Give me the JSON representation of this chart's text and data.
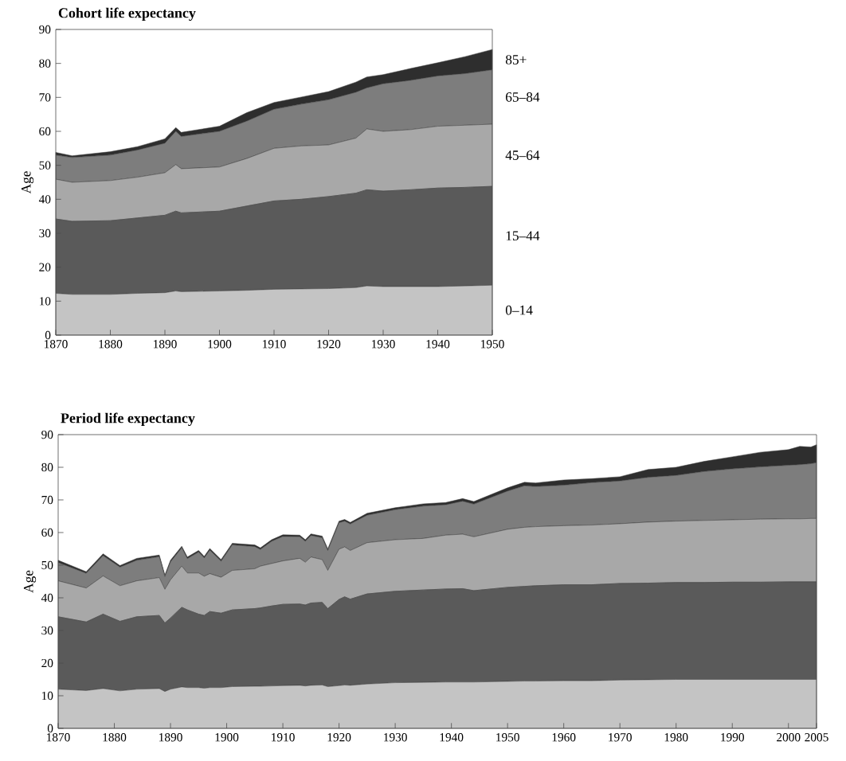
{
  "chart_data": [
    {
      "type": "area",
      "title": "Cohort life expectancy",
      "ylabel": "Age",
      "stacked": true,
      "x": [
        1870,
        1873,
        1880,
        1885,
        1890,
        1892,
        1893,
        1900,
        1905,
        1910,
        1915,
        1920,
        1925,
        1927,
        1930,
        1935,
        1940,
        1945,
        1950
      ],
      "xlim": [
        1870,
        1950
      ],
      "xticks": [
        1870,
        1880,
        1890,
        1900,
        1910,
        1920,
        1930,
        1940,
        1950
      ],
      "ylim": [
        0,
        90
      ],
      "yticks": [
        0,
        10,
        20,
        30,
        40,
        50,
        60,
        70,
        80,
        90
      ],
      "series": [
        {
          "name": "0–14",
          "color": "#c4c4c4",
          "values": [
            12.3,
            12,
            12,
            12.3,
            12.5,
            13,
            12.8,
            13,
            13.2,
            13.5,
            13.6,
            13.7,
            14,
            14.5,
            14.3,
            14.3,
            14.3,
            14.5,
            14.7
          ]
        },
        {
          "name": "15–44",
          "color": "#5a5a5a",
          "values": [
            21.9,
            21.5,
            21.7,
            22.2,
            22.8,
            23.5,
            23.2,
            23.5,
            24.8,
            26,
            26.4,
            27.1,
            27.8,
            28.3,
            28.1,
            28.5,
            29,
            29,
            29.1
          ]
        },
        {
          "name": "45–64",
          "color": "#a8a8a8",
          "values": [
            11.7,
            11.5,
            11.8,
            12,
            12.5,
            13.7,
            13,
            13,
            14,
            15.5,
            15.7,
            15.2,
            16.2,
            17.9,
            17.6,
            17.7,
            18.2,
            18.3,
            18.3
          ]
        },
        {
          "name": "65–84",
          "color": "#7d7d7d",
          "values": [
            7.1,
            7.3,
            7.5,
            8,
            8.7,
            9.8,
            9.5,
            10.5,
            11,
            11.5,
            12.3,
            13.3,
            13.5,
            12.1,
            14,
            14.5,
            14.8,
            15.2,
            16
          ]
        },
        {
          "name": "85+",
          "color": "#2e2e2e",
          "values": [
            0.8,
            0.5,
            1,
            1,
            1.3,
            1.1,
            1.2,
            1.5,
            2.5,
            2,
            2.1,
            2.4,
            3,
            3.2,
            2.7,
            3.5,
            3.9,
            5,
            6
          ]
        }
      ]
    },
    {
      "type": "area",
      "title": "Period life expectancy",
      "ylabel": "Age",
      "stacked": true,
      "x": [
        1870,
        1875,
        1878,
        1881,
        1884,
        1888,
        1889,
        1890,
        1892,
        1893,
        1895,
        1896,
        1897,
        1899,
        1901,
        1905,
        1906,
        1908,
        1910,
        1913,
        1914,
        1915,
        1917,
        1918,
        1920,
        1921,
        1922,
        1925,
        1930,
        1935,
        1939,
        1942,
        1944,
        1950,
        1953,
        1955,
        1960,
        1965,
        1970,
        1975,
        1980,
        1985,
        1990,
        1995,
        2000,
        2002,
        2004,
        2005
      ],
      "xlim": [
        1870,
        2005
      ],
      "xticks": [
        1870,
        1880,
        1890,
        1900,
        1910,
        1920,
        1930,
        1940,
        1950,
        1960,
        1970,
        1980,
        1990,
        2000,
        2005
      ],
      "ylim": [
        0,
        90
      ],
      "yticks": [
        0,
        10,
        20,
        30,
        40,
        50,
        60,
        70,
        80,
        90
      ],
      "series": [
        {
          "color": "#c4c4c4",
          "values": [
            12,
            11.6,
            12.2,
            11.5,
            12,
            12.2,
            11.3,
            12,
            12.7,
            12.5,
            12.5,
            12.3,
            12.5,
            12.5,
            12.8,
            12.9,
            12.9,
            13,
            13.1,
            13.2,
            13,
            13.2,
            13.3,
            12.8,
            13.1,
            13.3,
            13.2,
            13.6,
            14,
            14.1,
            14.2,
            14.2,
            14.2,
            14.4,
            14.5,
            14.5,
            14.6,
            14.6,
            14.8,
            14.9,
            15,
            15,
            15,
            15,
            15,
            15,
            15,
            15
          ]
        },
        {
          "color": "#5a5a5a",
          "values": [
            22.2,
            21,
            22.8,
            21.3,
            22.2,
            22.4,
            21,
            21.8,
            24.4,
            23.8,
            22.5,
            22.3,
            23.3,
            22.8,
            23.5,
            23.8,
            24,
            24.5,
            24.9,
            24.9,
            24.8,
            25.2,
            25.3,
            23.9,
            26.4,
            27,
            26.4,
            27.6,
            28,
            28.3,
            28.5,
            28.6,
            28,
            28.8,
            29,
            29.2,
            29.4,
            29.4,
            29.6,
            29.6,
            29.7,
            29.7,
            29.8,
            29.8,
            29.9,
            29.9,
            29.9,
            29.9
          ]
        },
        {
          "color": "#a8a8a8",
          "values": [
            11,
            10.4,
            11.7,
            10.9,
            11,
            11.6,
            10.3,
            11.7,
            12.6,
            11.3,
            12.6,
            12,
            11.6,
            11,
            12.1,
            12.2,
            12.8,
            13,
            13.3,
            14,
            13.1,
            14.1,
            13.1,
            11.7,
            15.4,
            15.3,
            14.9,
            15.7,
            15.8,
            15.8,
            16.5,
            16.7,
            16.5,
            17.8,
            18.1,
            18.1,
            18.1,
            18.3,
            18.3,
            18.7,
            18.8,
            19,
            19.1,
            19.3,
            19.3,
            19.3,
            19.4,
            19.4
          ]
        },
        {
          "color": "#7d7d7d",
          "values": [
            5.6,
            4.5,
            6.2,
            5.7,
            6.3,
            6.4,
            3.9,
            5.5,
            5.6,
            4.4,
            6.4,
            5.6,
            7.2,
            4.9,
            7.8,
            6.8,
            5.1,
            6.8,
            7.5,
            6.6,
            6.4,
            6.6,
            6.7,
            6.1,
            8.1,
            7.9,
            8.1,
            8.4,
            9.2,
            9.9,
            9.3,
            10.1,
            10,
            11.7,
            12.7,
            12.3,
            12.4,
            13,
            13.1,
            13.7,
            14,
            15,
            15.6,
            16,
            16.4,
            16.6,
            16.8,
            17.1
          ]
        },
        {
          "color": "#2e2e2e",
          "values": [
            0.7,
            0.5,
            0.6,
            0.5,
            0.6,
            0.5,
            0.5,
            0.5,
            0.5,
            0.5,
            0.5,
            0.5,
            0.5,
            0.5,
            0.5,
            0.5,
            0.5,
            0.5,
            0.5,
            0.5,
            0.5,
            0.5,
            0.5,
            0.5,
            0.5,
            0.5,
            0.5,
            0.6,
            0.6,
            0.7,
            0.7,
            0.8,
            0.8,
            1,
            1.1,
            1.1,
            1.6,
            1.2,
            1.3,
            2.4,
            2.5,
            3.1,
            3.7,
            4.5,
            4.8,
            5.6,
            5.1,
            5.5
          ]
        }
      ]
    }
  ]
}
